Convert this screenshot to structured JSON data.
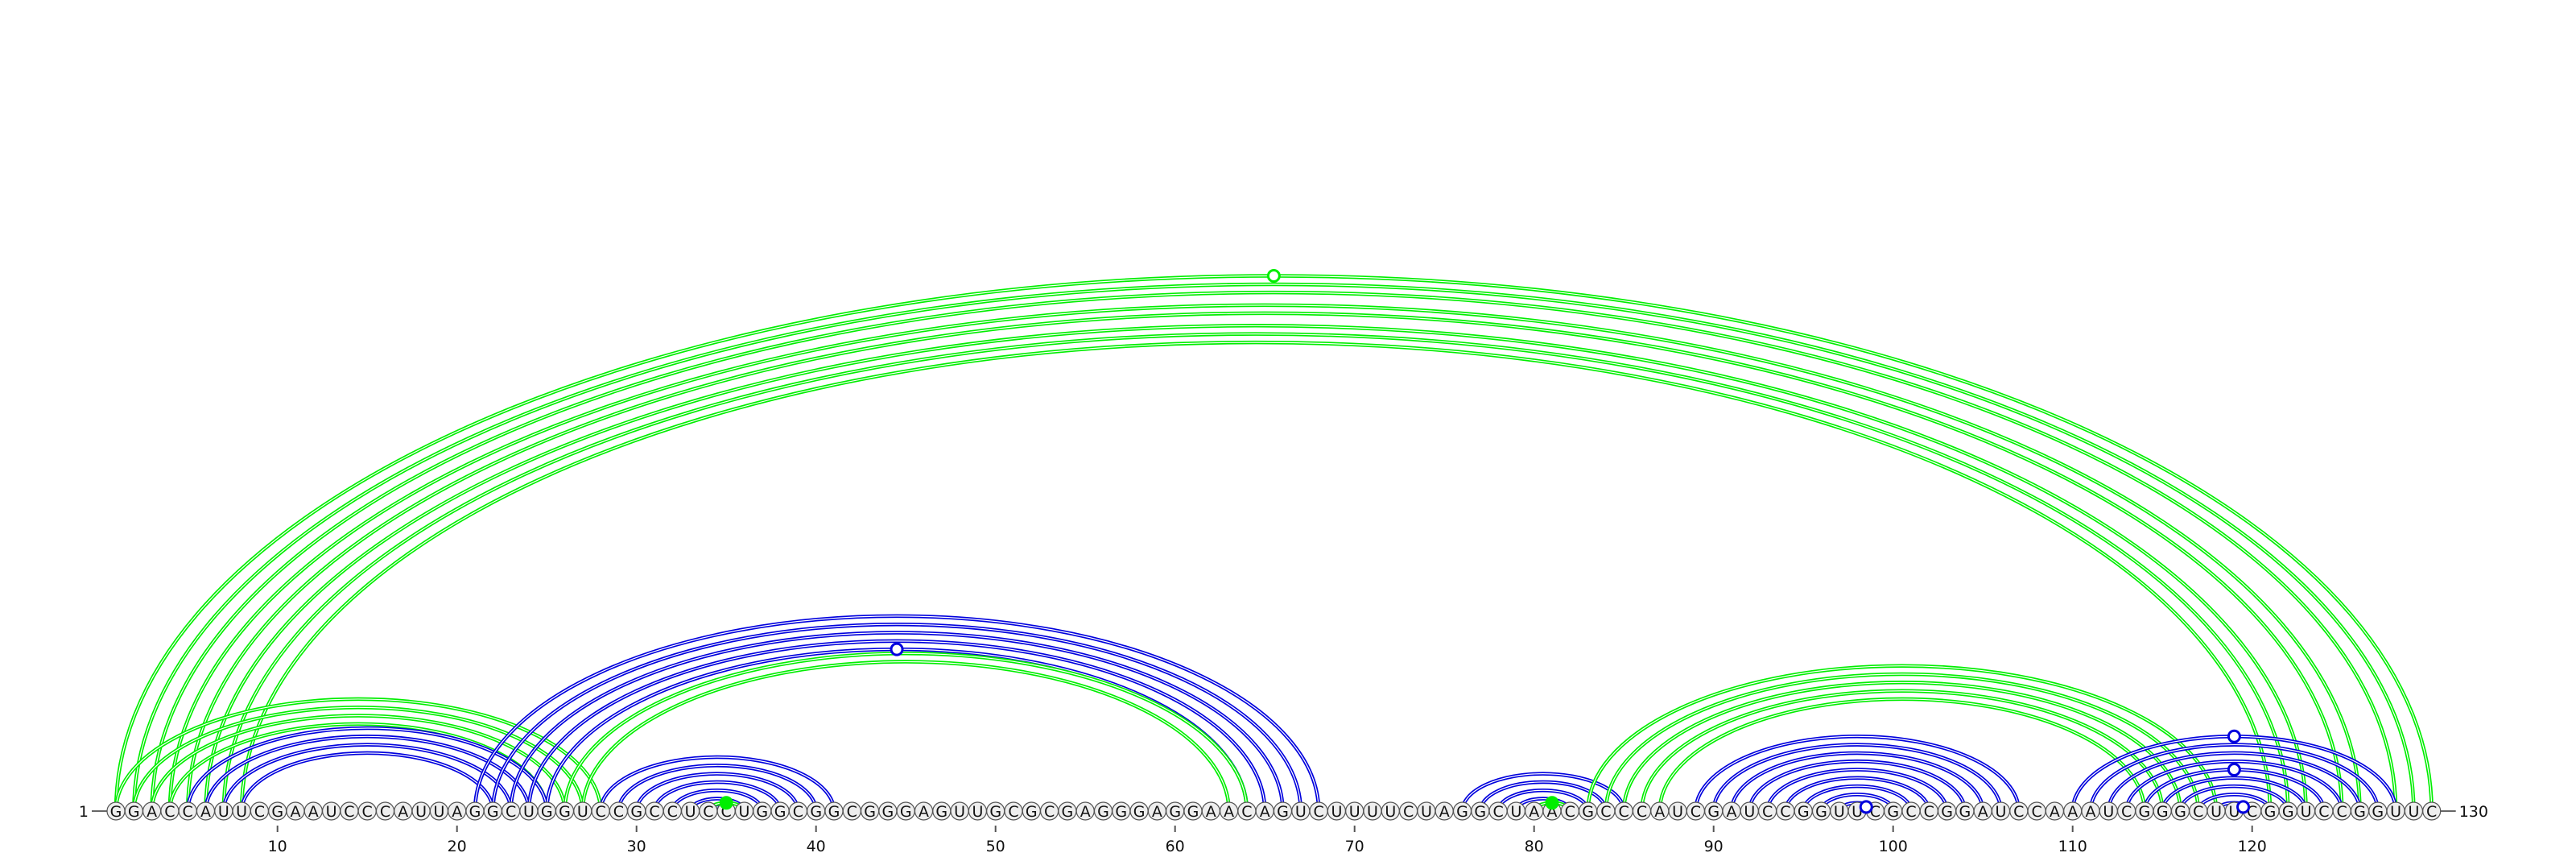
{
  "sequence": "GGACCAUUCGAAUCCCAUUAGGCUGGUCCGCCUCCUGGCGGCGGGAGUUGCGCGAGGGAGGAACAGUCUUUUCUAGGCUAACGCCCAUCGAUCCGGUUCGCCGGAUCCAAAUCGGGCUUCGGUCCGGUUC",
  "labels": {
    "start": "1",
    "end": "130"
  },
  "ticks": [
    10,
    20,
    30,
    40,
    50,
    60,
    70,
    80,
    90,
    100,
    110,
    120
  ],
  "colors": {
    "blue": "#0000dd",
    "green": "#00ee00",
    "circle_fill": "#eeeeee"
  },
  "arc_groups": [
    {
      "color": "green",
      "pairs": [
        [
          1,
          130
        ],
        [
          2,
          129
        ],
        [
          3,
          128
        ],
        [
          4,
          126
        ],
        [
          5,
          125
        ],
        [
          6,
          123
        ],
        [
          7,
          122
        ],
        [
          8,
          121
        ]
      ]
    },
    {
      "color": "green",
      "pairs": [
        [
          1,
          28
        ],
        [
          2,
          27
        ],
        [
          3,
          26
        ],
        [
          4,
          25
        ]
      ]
    },
    {
      "color": "blue",
      "pairs": [
        [
          5,
          25
        ],
        [
          6,
          24
        ],
        [
          7,
          23
        ],
        [
          8,
          22
        ]
      ]
    },
    {
      "color": "blue",
      "pairs": [
        [
          21,
          68
        ],
        [
          22,
          67
        ],
        [
          23,
          66
        ],
        [
          24,
          65
        ],
        [
          25,
          64
        ]
      ]
    },
    {
      "color": "green",
      "pairs": [
        [
          26,
          64
        ],
        [
          27,
          63
        ]
      ]
    },
    {
      "color": "blue",
      "pairs": [
        [
          28,
          41
        ],
        [
          29,
          40
        ],
        [
          30,
          39
        ],
        [
          31,
          38
        ],
        [
          32,
          37
        ],
        [
          33,
          36
        ],
        [
          34,
          35
        ]
      ]
    },
    {
      "color": "green",
      "pairs": [
        [
          34,
          36
        ]
      ]
    },
    {
      "color": "blue",
      "pairs": [
        [
          76,
          85
        ],
        [
          77,
          84
        ],
        [
          78,
          83
        ],
        [
          79,
          82
        ]
      ]
    },
    {
      "color": "green",
      "pairs": [
        [
          80,
          82
        ]
      ]
    },
    {
      "color": "green",
      "pairs": [
        [
          83,
          118
        ],
        [
          84,
          117
        ],
        [
          85,
          116
        ],
        [
          86,
          115
        ],
        [
          87,
          114
        ]
      ]
    },
    {
      "color": "blue",
      "pairs": [
        [
          89,
          107
        ],
        [
          90,
          106
        ],
        [
          91,
          105
        ],
        [
          92,
          104
        ],
        [
          93,
          103
        ],
        [
          94,
          102
        ],
        [
          95,
          101
        ],
        [
          96,
          100
        ],
        [
          97,
          99
        ],
        [
          98,
          99
        ]
      ]
    },
    {
      "color": "blue",
      "pairs": [
        [
          110,
          128
        ],
        [
          111,
          127
        ],
        [
          112,
          126
        ],
        [
          113,
          125
        ],
        [
          114,
          124
        ],
        [
          115,
          123
        ],
        [
          116,
          122
        ],
        [
          117,
          121
        ],
        [
          118,
          120
        ],
        [
          119,
          120
        ]
      ]
    }
  ],
  "markers": [
    {
      "between": [
        1,
        130
      ],
      "color": "green",
      "filled": false
    },
    {
      "between": [
        25,
        64
      ],
      "color": "blue",
      "filled": false
    },
    {
      "between": [
        34,
        36
      ],
      "color": "green",
      "filled": true
    },
    {
      "between": [
        80,
        82
      ],
      "color": "green",
      "filled": true
    },
    {
      "between": [
        98,
        99
      ],
      "color": "blue",
      "filled": false
    },
    {
      "between": [
        110,
        128
      ],
      "color": "blue",
      "filled": false
    },
    {
      "between": [
        114,
        124
      ],
      "color": "blue",
      "filled": false
    },
    {
      "between": [
        119,
        120
      ],
      "color": "blue",
      "filled": false
    }
  ]
}
